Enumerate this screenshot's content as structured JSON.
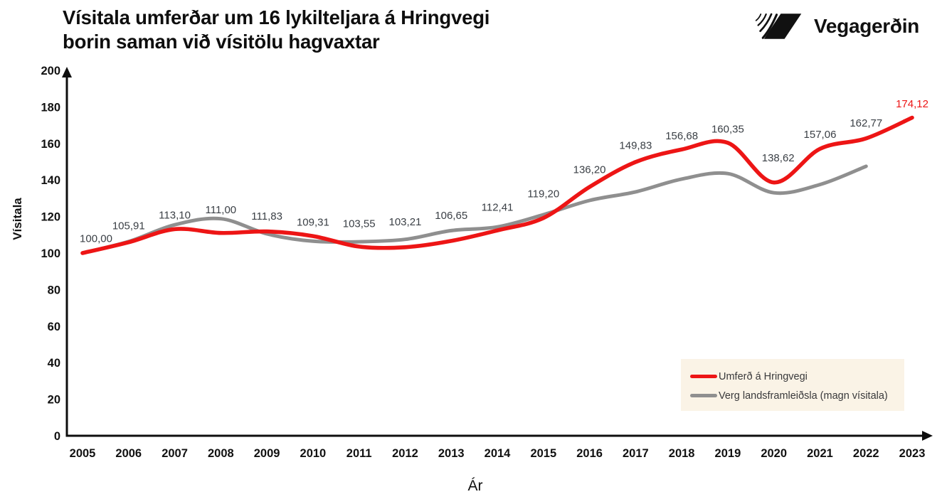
{
  "header": {
    "title_line1": "Vísitala umferðar um 16 lykilteljara á Hringvegi",
    "title_line2": "borin saman við vísitölu hagvaxtar",
    "logo_text": "Vegagerðin"
  },
  "chart_data": {
    "type": "line",
    "title": "Vísitala umferðar um 16 lykilteljara á Hringvegi borin saman við vísitölu hagvaxtar",
    "xlabel": "Ár",
    "ylabel": "Vísitala",
    "x": [
      2005,
      2006,
      2007,
      2008,
      2009,
      2010,
      2011,
      2012,
      2013,
      2014,
      2015,
      2016,
      2017,
      2018,
      2019,
      2020,
      2021,
      2022,
      2023
    ],
    "ylim": [
      0,
      200
    ],
    "yticks": [
      0,
      20,
      40,
      60,
      80,
      100,
      120,
      140,
      160,
      180,
      200
    ],
    "grid": false,
    "legend_position": "bottom-right",
    "series": [
      {
        "name": "Umferð á Hringvegi",
        "color": "#ed1515",
        "values": [
          100.0,
          105.91,
          113.1,
          111.0,
          111.83,
          109.31,
          103.55,
          103.21,
          106.65,
          112.41,
          119.2,
          136.2,
          149.83,
          156.68,
          160.35,
          138.62,
          157.06,
          162.77,
          174.12
        ],
        "value_labels": [
          "100,00",
          "105,91",
          "113,10",
          "111,00",
          "111,83",
          "109,31",
          "103,55",
          "103,21",
          "106,65",
          "112,41",
          "119,20",
          "136,20",
          "149,83",
          "156,68",
          "160,35",
          "138,62",
          "157,06",
          "162,77",
          "174,12"
        ],
        "labels_shown": true
      },
      {
        "name": "Verg landsframleiðsla (magn vísitala)",
        "color": "#8f8f8f",
        "values": [
          100.0,
          106.3,
          115.5,
          118.8,
          110.5,
          106.5,
          106.2,
          107.5,
          112.3,
          114.3,
          121.0,
          128.8,
          133.5,
          140.5,
          143.5,
          133.0,
          137.5,
          147.5
        ],
        "labels_shown": false
      }
    ],
    "label_color_default": "#3b4046",
    "last_label_color": "#ed1515",
    "layout_hints": {
      "label_dx": [
        19,
        0,
        0,
        0,
        0,
        0,
        0,
        0,
        0,
        0,
        0,
        0,
        0,
        0,
        0,
        6,
        0,
        0,
        0
      ],
      "label_dy": [
        -21,
        -23,
        -14,
        -13,
        -22,
        -20,
        -26,
        -25,
        -22,
        -28,
        -30,
        -25,
        -24,
        -20,
        -20,
        -35,
        -21,
        -22,
        -20
      ]
    }
  },
  "colors": {
    "accent_red": "#ed1515",
    "gdp_gray": "#8f8f8f",
    "legend_bg": "#faf3e6",
    "axis_black": "#0e0e0e"
  }
}
